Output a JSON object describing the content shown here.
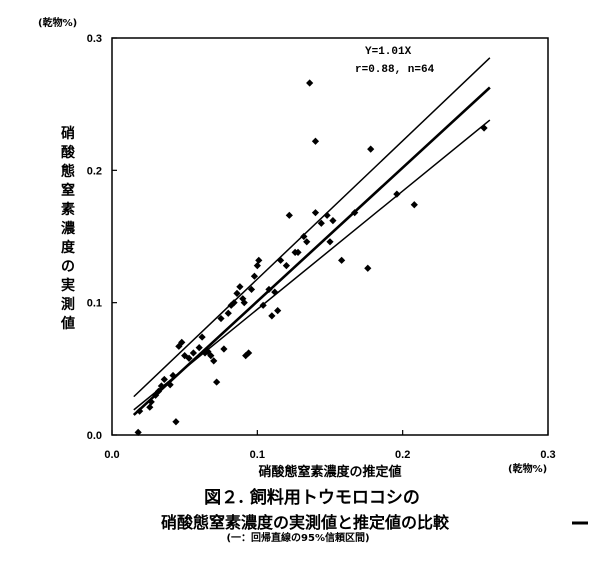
{
  "chart_data": {
    "type": "scatter",
    "xlabel": "硝酸態窒素濃度の推定値",
    "ylabel": "硝酸態窒素濃度の実測値",
    "x_unit": "(乾物%)",
    "y_unit": "(乾物%)",
    "xlim": [
      0,
      0.3
    ],
    "ylim": [
      0,
      0.3
    ],
    "x_ticks": [
      "0.0",
      "0.1",
      "0.2",
      "0.3"
    ],
    "y_ticks": [
      "0.0",
      "0.1",
      "0.2",
      "0.3"
    ],
    "annotation": [
      "Y=1.01X",
      "r=0.88, n=64"
    ],
    "grid": false,
    "points": [
      [
        0.018,
        0.002
      ],
      [
        0.019,
        0.018
      ],
      [
        0.026,
        0.021
      ],
      [
        0.027,
        0.025
      ],
      [
        0.03,
        0.03
      ],
      [
        0.032,
        0.033
      ],
      [
        0.034,
        0.037
      ],
      [
        0.036,
        0.042
      ],
      [
        0.04,
        0.038
      ],
      [
        0.042,
        0.045
      ],
      [
        0.044,
        0.01
      ],
      [
        0.046,
        0.067
      ],
      [
        0.048,
        0.07
      ],
      [
        0.05,
        0.06
      ],
      [
        0.053,
        0.058
      ],
      [
        0.056,
        0.062
      ],
      [
        0.06,
        0.066
      ],
      [
        0.062,
        0.074
      ],
      [
        0.064,
        0.062
      ],
      [
        0.066,
        0.063
      ],
      [
        0.068,
        0.06
      ],
      [
        0.07,
        0.056
      ],
      [
        0.072,
        0.04
      ],
      [
        0.075,
        0.088
      ],
      [
        0.077,
        0.065
      ],
      [
        0.08,
        0.092
      ],
      [
        0.082,
        0.098
      ],
      [
        0.084,
        0.1
      ],
      [
        0.086,
        0.107
      ],
      [
        0.088,
        0.112
      ],
      [
        0.09,
        0.103
      ],
      [
        0.091,
        0.1
      ],
      [
        0.092,
        0.06
      ],
      [
        0.094,
        0.062
      ],
      [
        0.096,
        0.11
      ],
      [
        0.098,
        0.12
      ],
      [
        0.1,
        0.128
      ],
      [
        0.101,
        0.132
      ],
      [
        0.104,
        0.098
      ],
      [
        0.108,
        0.11
      ],
      [
        0.11,
        0.09
      ],
      [
        0.112,
        0.108
      ],
      [
        0.114,
        0.094
      ],
      [
        0.116,
        0.132
      ],
      [
        0.12,
        0.128
      ],
      [
        0.122,
        0.166
      ],
      [
        0.126,
        0.138
      ],
      [
        0.128,
        0.138
      ],
      [
        0.132,
        0.15
      ],
      [
        0.134,
        0.146
      ],
      [
        0.136,
        0.266
      ],
      [
        0.14,
        0.168
      ],
      [
        0.14,
        0.222
      ],
      [
        0.144,
        0.16
      ],
      [
        0.148,
        0.166
      ],
      [
        0.15,
        0.146
      ],
      [
        0.152,
        0.162
      ],
      [
        0.158,
        0.132
      ],
      [
        0.167,
        0.168
      ],
      [
        0.176,
        0.126
      ],
      [
        0.178,
        0.216
      ],
      [
        0.196,
        0.182
      ],
      [
        0.208,
        0.174
      ],
      [
        0.256,
        0.232
      ]
    ],
    "regression": {
      "slope": 1.01
    },
    "ci_band": {
      "lower": [
        [
          0.015,
          0.019
        ],
        [
          0.26,
          0.238
        ]
      ],
      "upper": [
        [
          0.015,
          0.029
        ],
        [
          0.26,
          0.285
        ]
      ]
    }
  },
  "caption": {
    "line1": "図２. 飼料用トウモロコシの",
    "line2": "硝酸態窒素濃度の実測値と推定値の比較",
    "line3": "(一：回帰直線の95%信頼区間)"
  }
}
